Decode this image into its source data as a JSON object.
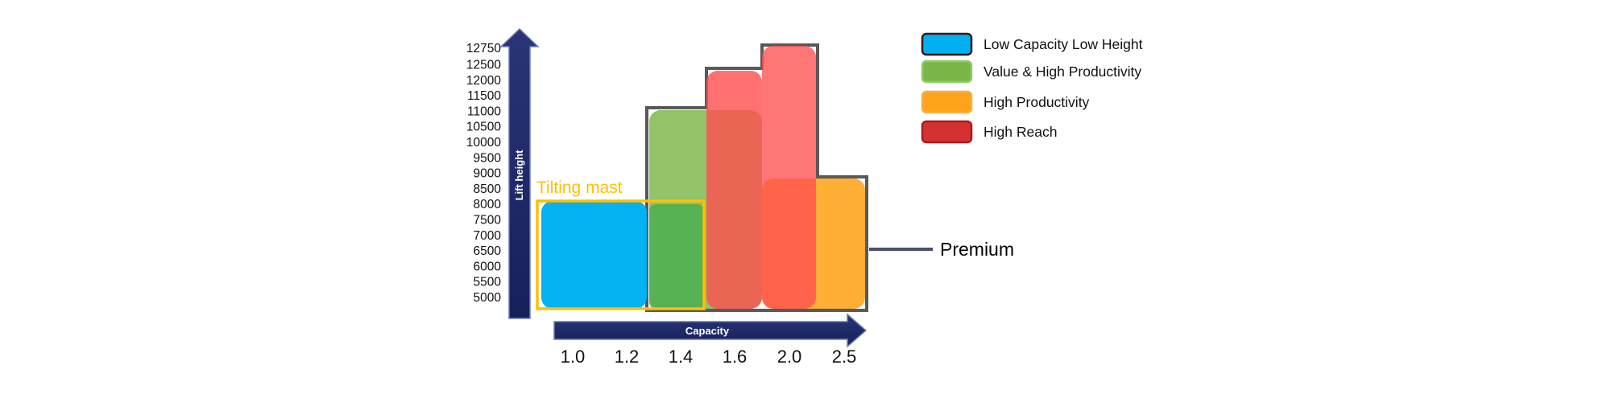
{
  "chart_data": {
    "type": "bar",
    "xlabel": "Capacity",
    "ylabel": "Lift height",
    "x_ticks": [
      "1.0",
      "1.2",
      "1.4",
      "1.6",
      "2.0",
      "2.5"
    ],
    "y_ticks": [
      5000,
      5500,
      6000,
      6500,
      7000,
      7500,
      8000,
      8500,
      9000,
      9500,
      10000,
      10500,
      11000,
      11500,
      12000,
      12500,
      12750
    ],
    "series": [
      {
        "name": "Low Capacity Low Height",
        "color": "#00b0f0",
        "x_from": "1.0",
        "x_to": "1.4",
        "lift_height_max": 8000
      },
      {
        "name": "Value & High Productivity",
        "color": "#7ab648",
        "x_from": "1.4",
        "x_to": "2.0",
        "lift_height_max": 11000
      },
      {
        "name": "High Productivity",
        "color": "#ffa31a",
        "x_from": "2.0",
        "x_to": "2.5",
        "lift_height_max": 8500
      },
      {
        "name": "High Reach",
        "color": "#ff5050",
        "x_from": "1.6",
        "x_to": "2.0",
        "lift_height_max": 12250
      },
      {
        "name": "High Reach",
        "color": "#ff5050",
        "x_from": "2.0",
        "x_to": "2.5",
        "lift_height_max": 12750
      }
    ],
    "legend_position": "top-right",
    "annotations": [
      {
        "text": "Tilting mast",
        "color": "#ffc000"
      },
      {
        "text": "Premium",
        "color": "#000000"
      }
    ],
    "outline_color": "#595959",
    "axis_arrow_color": "#1f2a6b"
  }
}
